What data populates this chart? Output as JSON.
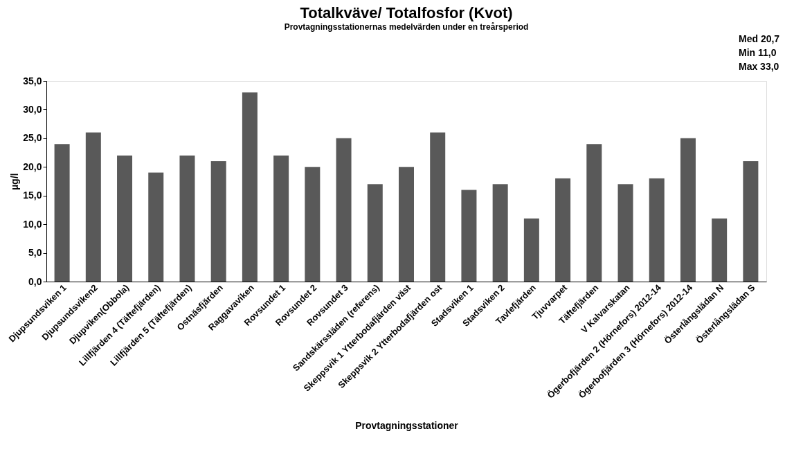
{
  "chart_data": {
    "type": "bar",
    "title": "Totalkväve/ Totalfosfor (Kvot)",
    "subtitle": "Provtagningsstationernas medelvärden under en treårsperiod",
    "xlabel": "Provtagningsstationer",
    "ylabel": "µg/l",
    "categories": [
      "Djupsundsviken 1",
      "Djupsundsviken2",
      "Djupviken(Obbola)",
      "Lillfjärden 4 (Täftefjärden)",
      "Lillfjärden 5 (Täftefjärden)",
      "Ostnäsfjärden",
      "Raggavaviken",
      "Rovsundet 1",
      "Rovsundet 2",
      "Rovsundet 3",
      "Sandskärssläden (referens)",
      "Skeppsvik 1 Ytterbodafjärden väst",
      "Skeppsvik 2 Ytterbodafjärden ost",
      "Stadsviken 1",
      "Stadsviken 2",
      "Tavlefjärden",
      "Tjuvvarpet",
      "Täftefjärden",
      "V Kalvarskatan",
      "Ögerbofjärden 2 (Hörnefors) 2012-14",
      "Ögerbofjärden 3 (Hörnefors) 2012-14",
      "Österlångslädan N",
      "Österlångslädan S"
    ],
    "values": [
      24,
      26,
      22,
      19,
      22,
      21,
      33,
      22,
      20,
      25,
      17,
      20,
      26,
      16,
      17,
      11,
      18,
      24,
      17,
      18,
      25,
      11,
      21
    ],
    "color": "#595959",
    "ylim": [
      0,
      35
    ],
    "yticks": [
      {
        "value": 0,
        "label": "0,0"
      },
      {
        "value": 5,
        "label": "5,0"
      },
      {
        "value": 10,
        "label": "10,0"
      },
      {
        "value": 15,
        "label": "15,0"
      },
      {
        "value": 20,
        "label": "20,0"
      },
      {
        "value": 25,
        "label": "25,0"
      },
      {
        "value": 30,
        "label": "30,0"
      },
      {
        "value": 35,
        "label": "35,0"
      }
    ],
    "grid": false,
    "annotations": [
      "Med  20,7",
      "Min   11,0",
      "Max   33,0"
    ]
  }
}
